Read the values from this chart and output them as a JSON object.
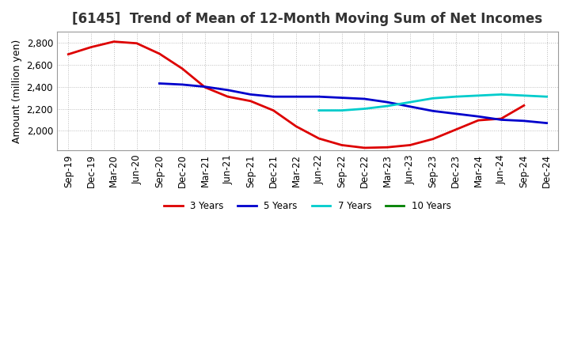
{
  "title": "[6145]  Trend of Mean of 12-Month Moving Sum of Net Incomes",
  "ylabel": "Amount (million yen)",
  "background_color": "#ffffff",
  "plot_bg_color": "#ffffff",
  "ylim": [
    1820,
    2900
  ],
  "yticks": [
    2000,
    2200,
    2400,
    2600,
    2800
  ],
  "x_labels": [
    "Sep-19",
    "Dec-19",
    "Mar-20",
    "Jun-20",
    "Sep-20",
    "Dec-20",
    "Mar-21",
    "Jun-21",
    "Sep-21",
    "Dec-21",
    "Mar-22",
    "Jun-22",
    "Sep-22",
    "Dec-22",
    "Mar-23",
    "Jun-23",
    "Sep-23",
    "Dec-23",
    "Mar-24",
    "Jun-24",
    "Sep-24",
    "Dec-24"
  ],
  "series": {
    "3 Years": {
      "color": "#dd0000",
      "linewidth": 2.0,
      "values": [
        2695,
        2760,
        2810,
        2795,
        2700,
        2565,
        2395,
        2310,
        2270,
        2185,
        2040,
        1930,
        1870,
        1845,
        1850,
        1870,
        1925,
        2010,
        2095,
        2110,
        2230,
        null
      ]
    },
    "5 Years": {
      "color": "#0000cc",
      "linewidth": 2.0,
      "values": [
        null,
        null,
        null,
        null,
        2430,
        2420,
        2400,
        2370,
        2330,
        2310,
        2310,
        2310,
        2300,
        2290,
        2260,
        2220,
        2180,
        2155,
        2130,
        2100,
        2090,
        2070
      ]
    },
    "7 Years": {
      "color": "#00cccc",
      "linewidth": 2.0,
      "values": [
        null,
        null,
        null,
        null,
        null,
        null,
        null,
        null,
        null,
        null,
        null,
        2185,
        2185,
        2200,
        2225,
        2260,
        2295,
        2310,
        2320,
        2330,
        2320,
        2310
      ]
    },
    "10 Years": {
      "color": "#008000",
      "linewidth": 2.0,
      "values": [
        null,
        null,
        null,
        null,
        null,
        null,
        null,
        null,
        null,
        null,
        null,
        null,
        null,
        null,
        null,
        null,
        null,
        null,
        null,
        null,
        null,
        null
      ]
    }
  },
  "legend_entries": [
    "3 Years",
    "5 Years",
    "7 Years",
    "10 Years"
  ],
  "legend_colors": [
    "#dd0000",
    "#0000cc",
    "#00cccc",
    "#008000"
  ],
  "grid_linestyle": ":",
  "grid_color": "#bbbbbb",
  "grid_linewidth": 0.7,
  "title_fontsize": 12,
  "label_fontsize": 9,
  "tick_fontsize": 8.5
}
